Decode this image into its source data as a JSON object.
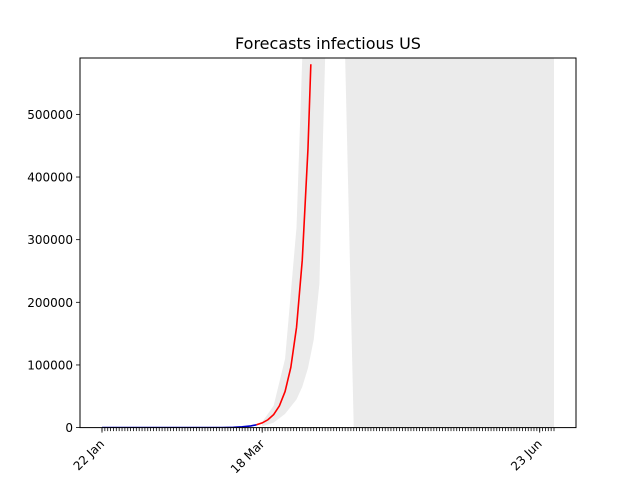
{
  "chart_data": {
    "type": "line",
    "title": "Forecasts infectious US",
    "xlabel": "",
    "ylabel": "",
    "x_tick_labels": [
      {
        "date": "2020-01-22",
        "label": "22 Jan"
      },
      {
        "date": "2020-03-18",
        "label": "18 Mar"
      },
      {
        "date": "2020-06-23",
        "label": "23 Jun"
      }
    ],
    "xlim": [
      "2020-01-22",
      "2020-06-28"
    ],
    "ylim": [
      0,
      590000
    ],
    "yticks": [
      0,
      100000,
      200000,
      300000,
      400000,
      500000
    ],
    "grid": false,
    "series": [
      {
        "role": "observed",
        "color": "#0000cc",
        "points": [
          {
            "x": "2020-01-22",
            "y": 1
          },
          {
            "x": "2020-02-01",
            "y": 8
          },
          {
            "x": "2020-02-11",
            "y": 13
          },
          {
            "x": "2020-02-21",
            "y": 35
          },
          {
            "x": "2020-02-29",
            "y": 70
          },
          {
            "x": "2020-03-04",
            "y": 150
          },
          {
            "x": "2020-03-08",
            "y": 500
          },
          {
            "x": "2020-03-11",
            "y": 1200
          },
          {
            "x": "2020-03-14",
            "y": 2700
          },
          {
            "x": "2020-03-16",
            "y": 4500
          }
        ]
      },
      {
        "role": "forecast",
        "color": "#ff0000",
        "points": [
          {
            "x": "2020-03-16",
            "y": 4500
          },
          {
            "x": "2020-03-18",
            "y": 7500
          },
          {
            "x": "2020-03-20",
            "y": 12500
          },
          {
            "x": "2020-03-22",
            "y": 20800
          },
          {
            "x": "2020-03-24",
            "y": 34600
          },
          {
            "x": "2020-03-26",
            "y": 57700
          },
          {
            "x": "2020-03-28",
            "y": 96000
          },
          {
            "x": "2020-03-30",
            "y": 160000
          },
          {
            "x": "2020-04-01",
            "y": 267000
          },
          {
            "x": "2020-04-03",
            "y": 445000
          },
          {
            "x": "2020-04-04",
            "y": 580000
          }
        ]
      }
    ],
    "confidence_bands": [
      {
        "color": "#ebebeb",
        "points": [
          {
            "x": "2020-03-18",
            "lower": 2000,
            "upper": 9000
          },
          {
            "x": "2020-03-22",
            "lower": 8000,
            "upper": 35000
          },
          {
            "x": "2020-03-26",
            "lower": 22000,
            "upper": 110000
          },
          {
            "x": "2020-03-30",
            "lower": 45000,
            "upper": 320000
          },
          {
            "x": "2020-04-01",
            "lower": 65000,
            "upper": 590000
          },
          {
            "x": "2020-04-03",
            "lower": 95000,
            "upper": 590000
          },
          {
            "x": "2020-04-05",
            "lower": 140000,
            "upper": 590000
          },
          {
            "x": "2020-04-07",
            "lower": 230000,
            "upper": 590000
          },
          {
            "x": "2020-04-08",
            "lower": 420000,
            "upper": 590000
          },
          {
            "x": "2020-04-09",
            "lower": 590000,
            "upper": 590000
          }
        ]
      },
      {
        "color": "#ebebeb",
        "points": [
          {
            "x": "2020-04-16",
            "lower": 590000,
            "upper": 590000
          },
          {
            "x": "2020-04-19",
            "lower": 0,
            "upper": 590000
          },
          {
            "x": "2020-06-28",
            "lower": 0,
            "upper": 590000
          }
        ]
      }
    ],
    "minor_ticks": "daily"
  }
}
